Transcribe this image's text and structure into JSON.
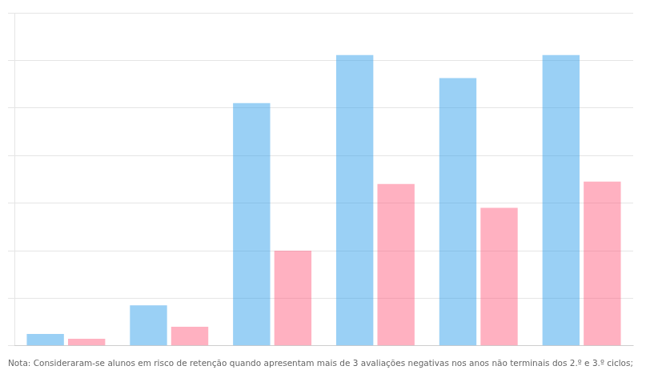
{
  "chart_data": {
    "type": "bar",
    "categories": [
      null,
      null,
      null,
      null,
      null,
      null
    ],
    "series": [
      {
        "values": [
          2.5,
          8.5,
          51.0,
          61.1,
          56.3,
          61.1
        ]
      },
      {
        "values": [
          1.5,
          4.0,
          20.0,
          34.0,
          29.0,
          34.5
        ]
      }
    ],
    "ylim": [
      0,
      70
    ],
    "yticks": [
      0,
      10,
      20,
      30,
      40,
      50,
      60,
      70
    ],
    "grid": true,
    "tick_labels": false,
    "annotations": [
      "Nota: Consideraram-se alunos em risco de retenção quando apresentam mais de 3 avaliações negativas nos anos não terminais dos 2.º e 3.º ciclos;"
    ]
  }
}
